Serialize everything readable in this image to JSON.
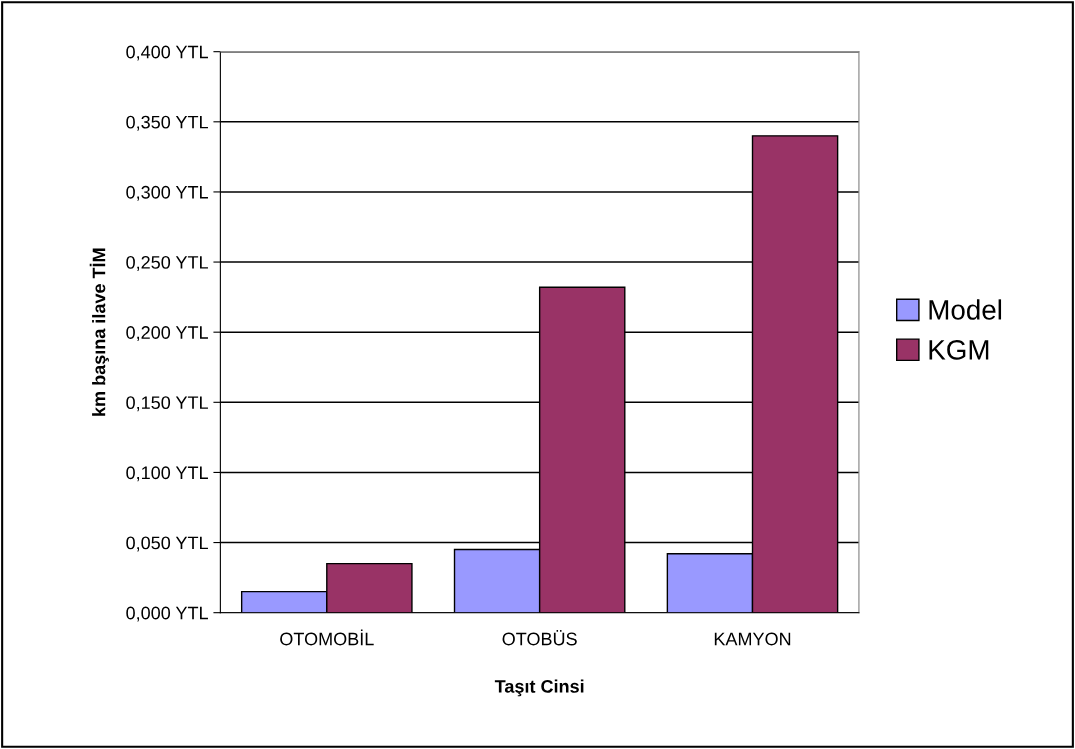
{
  "chart_data": {
    "type": "bar",
    "xlabel": "Taşıt Cinsi",
    "ylabel": "km başına ilave TİM",
    "categories": [
      "OTOMOBİL",
      "OTOBÜS",
      "KAMYON"
    ],
    "series": [
      {
        "name": "Model",
        "color": "#9999ff",
        "values": [
          0.015,
          0.045,
          0.042
        ]
      },
      {
        "name": "KGM",
        "color": "#993366",
        "values": [
          0.035,
          0.232,
          0.34
        ]
      }
    ],
    "ylim": [
      0,
      0.4
    ],
    "yticks": [
      {
        "value": 0,
        "label": "0,000 YTL"
      },
      {
        "value": 0.05,
        "label": "0,050 YTL"
      },
      {
        "value": 0.1,
        "label": "0,100 YTL"
      },
      {
        "value": 0.15,
        "label": "0,150 YTL"
      },
      {
        "value": 0.2,
        "label": "0,200 YTL"
      },
      {
        "value": 0.25,
        "label": "0,250 YTL"
      },
      {
        "value": 0.3,
        "label": "0,300 YTL"
      },
      {
        "value": 0.35,
        "label": "0,350 YTL"
      },
      {
        "value": 0.4,
        "label": "0,400 YTL"
      }
    ],
    "grid": "y",
    "legend": "right"
  }
}
